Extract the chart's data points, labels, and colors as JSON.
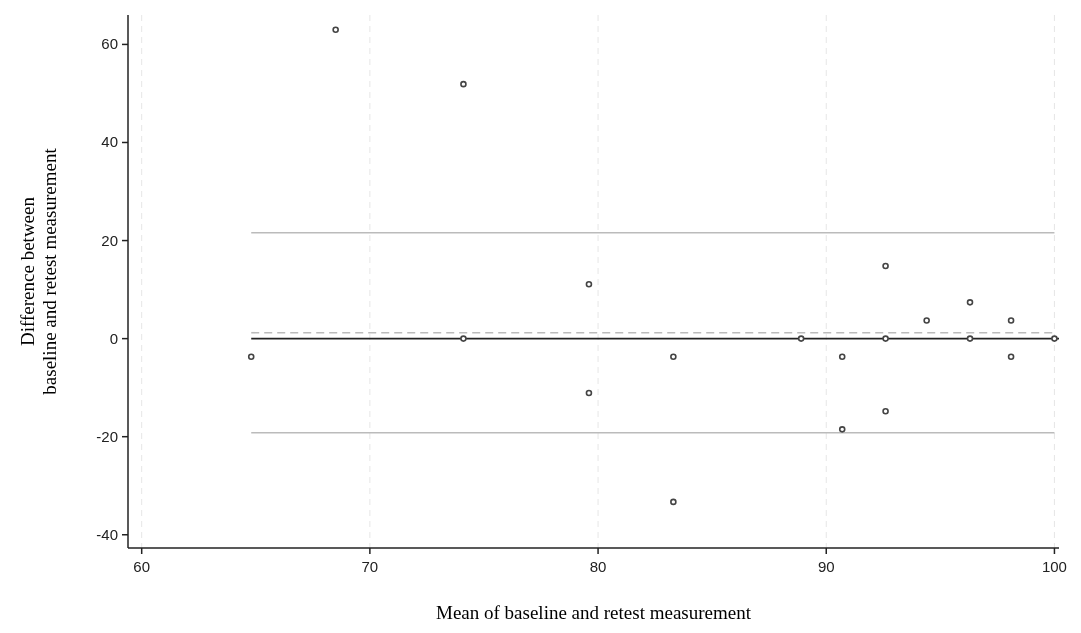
{
  "chart_data": {
    "type": "scatter",
    "xlabel": "Mean of baseline and retest measurement",
    "ylabel": "Difference between baseline and retest measurement",
    "xlim": [
      59.4,
      100.2
    ],
    "ylim": [
      -42.7,
      66
    ],
    "xticks": [
      60,
      70,
      80,
      90,
      100
    ],
    "yticks": [
      -40,
      -20,
      0,
      20,
      40,
      60
    ],
    "grid": "x",
    "marker": "circle",
    "series": [
      {
        "color": "#444444",
        "x": [
          64.8,
          68.5,
          74.1,
          74.1,
          79.6,
          79.6,
          83.3,
          83.3,
          88.9,
          90.7,
          90.7,
          92.6,
          92.6,
          92.6,
          94.4,
          96.3,
          96.3,
          98.1,
          98.1,
          100
        ],
        "values": [
          -3.7,
          63,
          51.9,
          0,
          11.1,
          -11.1,
          -3.7,
          -33.3,
          0,
          -3.7,
          -18.5,
          14.8,
          0,
          -14.8,
          3.7,
          7.4,
          0,
          3.7,
          -3.7,
          0
        ]
      }
    ],
    "ref_lines": [
      {
        "axis": "y",
        "value": 0,
        "color": "#222222",
        "line_style": "solid"
      },
      {
        "axis": "y",
        "value": 1.2,
        "color": "#bbbbbb",
        "line_style": "dashed"
      },
      {
        "axis": "y",
        "value": 21.6,
        "color": "#bbbbbb",
        "line_style": "solid"
      },
      {
        "axis": "y",
        "value": -19.2,
        "color": "#bbbbbb",
        "line_style": "solid"
      }
    ]
  }
}
